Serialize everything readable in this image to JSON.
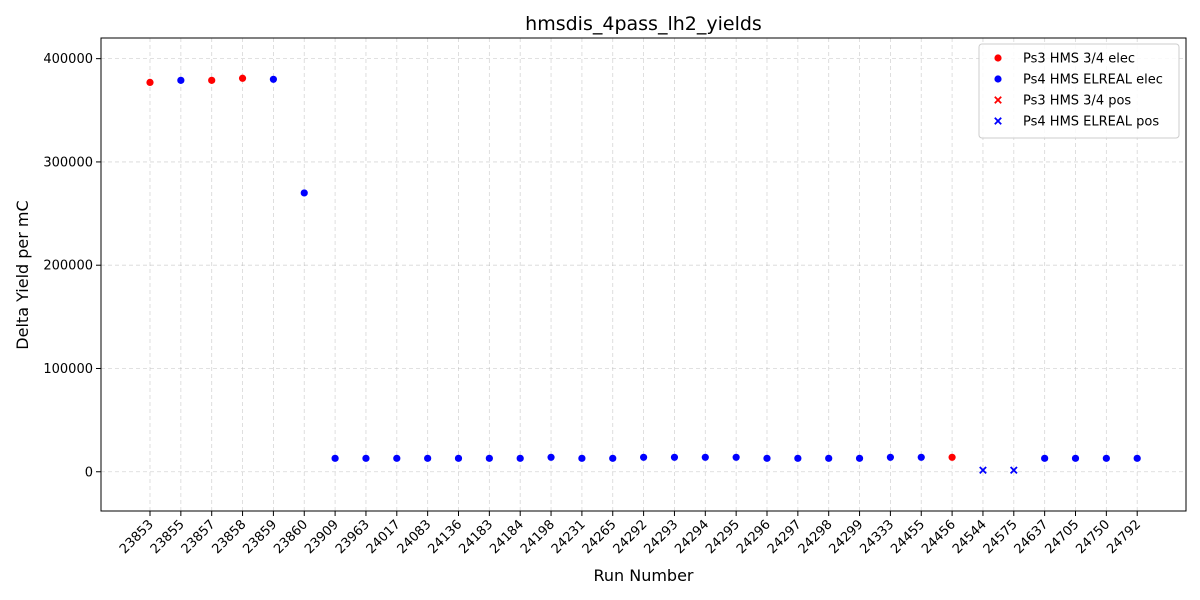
{
  "chart_data": {
    "type": "scatter",
    "title": "hmsdis_4pass_lh2_yields",
    "xlabel": "Run Number",
    "ylabel": "Delta Yield per mC",
    "categories": [
      "23853",
      "23855",
      "23857",
      "23858",
      "23859",
      "23860",
      "23909",
      "23963",
      "24017",
      "24083",
      "24136",
      "24183",
      "24184",
      "24198",
      "24231",
      "24265",
      "24292",
      "24293",
      "24294",
      "24295",
      "24296",
      "24297",
      "24298",
      "24299",
      "24333",
      "24455",
      "24456",
      "24544",
      "24575",
      "24637",
      "24705",
      "24750",
      "24792"
    ],
    "ylim": [
      -38000,
      420000
    ],
    "yticks": [
      0,
      100000,
      200000,
      300000,
      400000
    ],
    "grid": true,
    "legend_position": "top-right",
    "series": [
      {
        "name": "Ps3 HMS 3/4 elec",
        "marker": "circle",
        "color": "#ff0000",
        "points": [
          {
            "x": "23853",
            "y": 377000
          },
          {
            "x": "23857",
            "y": 379000
          },
          {
            "x": "23858",
            "y": 381000
          },
          {
            "x": "24456",
            "y": 14000
          }
        ]
      },
      {
        "name": "Ps4 HMS ELREAL elec",
        "marker": "circle",
        "color": "#0000ff",
        "points": [
          {
            "x": "23855",
            "y": 379000
          },
          {
            "x": "23859",
            "y": 380000
          },
          {
            "x": "23860",
            "y": 270000
          },
          {
            "x": "23909",
            "y": 13000
          },
          {
            "x": "23963",
            "y": 13000
          },
          {
            "x": "24017",
            "y": 13000
          },
          {
            "x": "24083",
            "y": 13000
          },
          {
            "x": "24136",
            "y": 13000
          },
          {
            "x": "24183",
            "y": 13000
          },
          {
            "x": "24184",
            "y": 13000
          },
          {
            "x": "24198",
            "y": 14000
          },
          {
            "x": "24231",
            "y": 13000
          },
          {
            "x": "24265",
            "y": 13000
          },
          {
            "x": "24292",
            "y": 14000
          },
          {
            "x": "24293",
            "y": 14000
          },
          {
            "x": "24294",
            "y": 14000
          },
          {
            "x": "24295",
            "y": 14000
          },
          {
            "x": "24296",
            "y": 13000
          },
          {
            "x": "24297",
            "y": 13000
          },
          {
            "x": "24298",
            "y": 13000
          },
          {
            "x": "24299",
            "y": 13000
          },
          {
            "x": "24333",
            "y": 14000
          },
          {
            "x": "24455",
            "y": 14000
          },
          {
            "x": "24637",
            "y": 13000
          },
          {
            "x": "24705",
            "y": 13000
          },
          {
            "x": "24750",
            "y": 13000
          },
          {
            "x": "24792",
            "y": 13000
          }
        ]
      },
      {
        "name": "Ps3 HMS 3/4 pos",
        "marker": "x",
        "color": "#ff0000",
        "points": []
      },
      {
        "name": "Ps4 HMS ELREAL pos",
        "marker": "x",
        "color": "#0000ff",
        "points": [
          {
            "x": "24544",
            "y": 1500
          },
          {
            "x": "24575",
            "y": 1500
          }
        ]
      }
    ]
  }
}
